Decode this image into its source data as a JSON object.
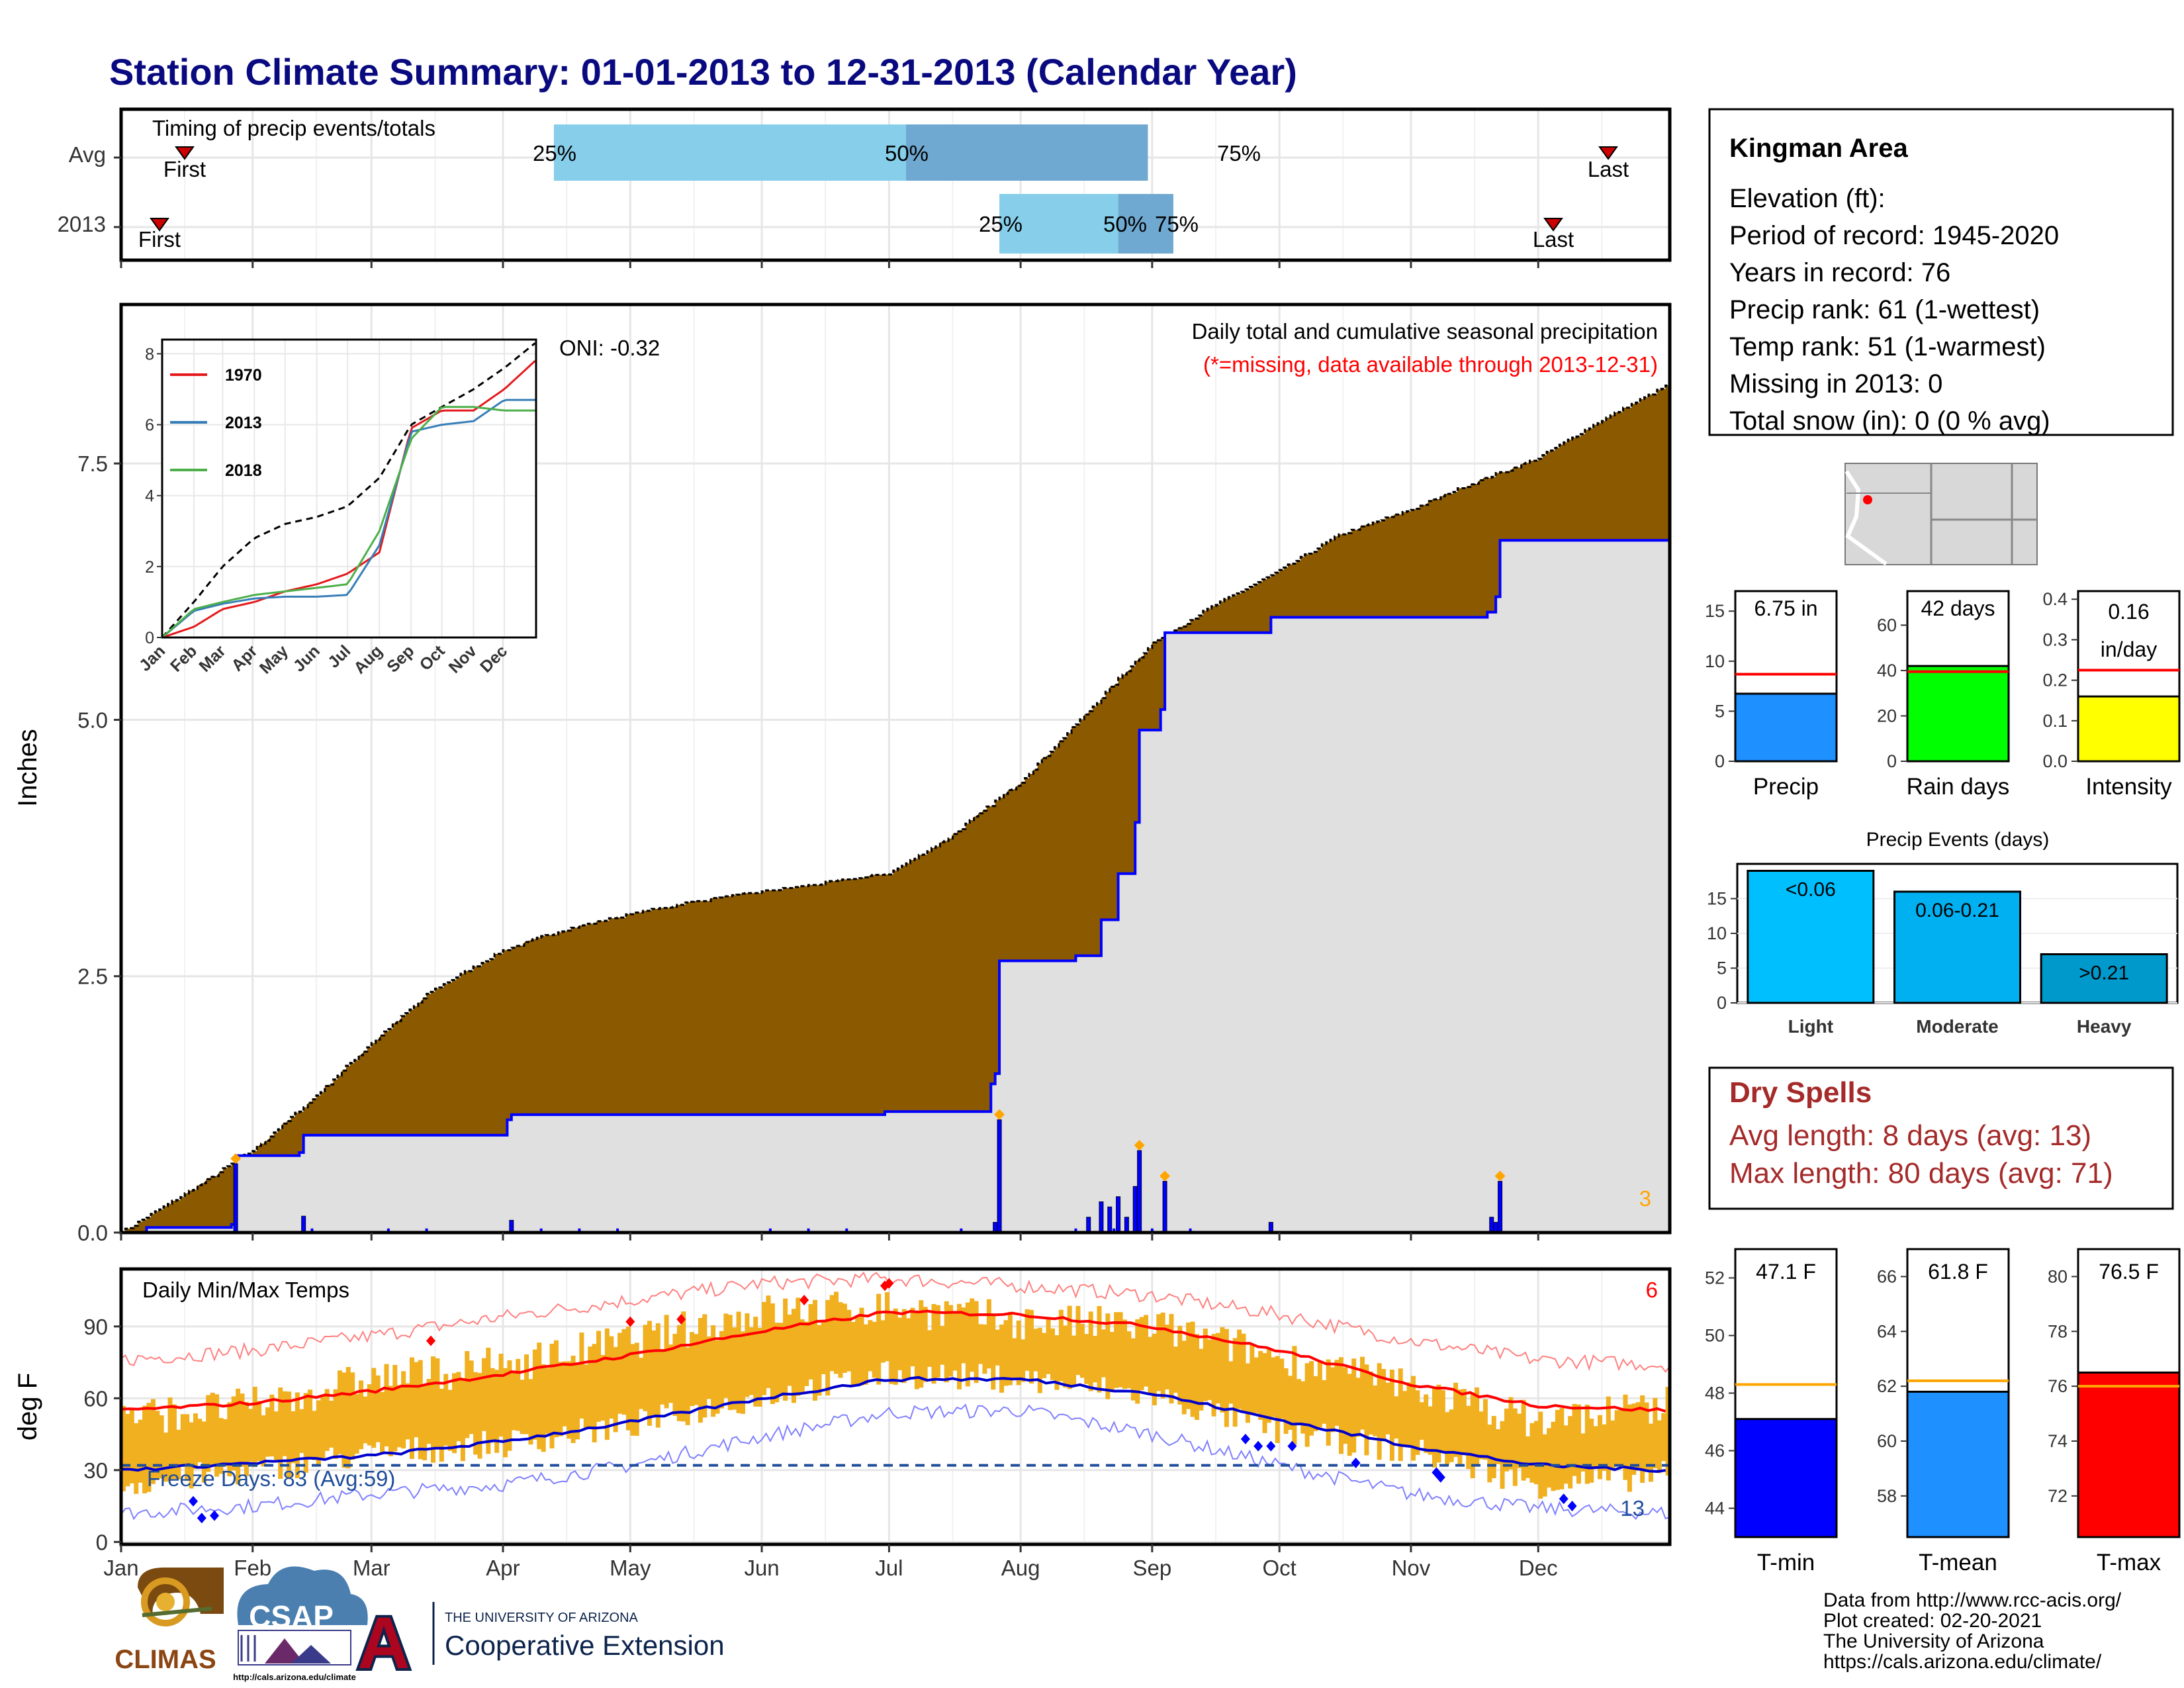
{
  "title": "Station Climate Summary: 01-01-2013 to 12-31-2013 (Calendar Year)",
  "timing": {
    "label": "Timing of precip events/totals",
    "rows": [
      {
        "name": "Avg",
        "first": "First",
        "last": "Last",
        "p25": "25%",
        "p50": "50%",
        "p75": "75%",
        "first_date": "2013-01-13",
        "p25_date": "2013-04-13",
        "p50_date": "2013-07-05",
        "p75_date": "2013-08-31",
        "last_date": "2013-12-22"
      },
      {
        "name": "2013",
        "first": "First",
        "last": "Last",
        "p25": "25%",
        "p50": "50%",
        "p75": "75%",
        "first_date": "2013-01-07",
        "p25_date": "2013-07-27",
        "p50_date": "2013-08-24",
        "p75_date": "2013-09-06",
        "last_date": "2013-12-03"
      }
    ]
  },
  "station": {
    "name": "Kingman Area",
    "lines": [
      "Elevation (ft):",
      "Period of record: 1945-2020",
      "Years in record: 76",
      "Precip rank: 61 (1-wettest)",
      "Temp rank: 51 (1-warmest)",
      "Missing in 2013: 0",
      "Total snow (in): 0 (0 % avg)"
    ]
  },
  "precip": {
    "ylabel": "Inches",
    "annot1": "Daily total and cumulative seasonal precipitation",
    "annot2": "(*=missing, data available through 2013-12-31)",
    "corner": "3",
    "oni": "ONI: -0.32",
    "colors": {
      "avg_fill": "#8b5a00",
      "obs_fill": "#e0e0e0",
      "obs_line": "#0000ff",
      "bars": "#0000ff",
      "extreme": "#ffa500"
    }
  },
  "inset": {
    "legend": [
      "1970",
      "2013",
      "2018"
    ],
    "colors": [
      "#e41a1c",
      "#377eb8",
      "#4daf4a"
    ]
  },
  "temps": {
    "ylabel": "deg F",
    "label": "Daily Min/Max Temps",
    "freeze": "Freeze Days: 83 (Avg:59)",
    "corner_hot": "6",
    "corner_cold": "13",
    "colors": {
      "range": "#f0b020",
      "tmax": "#ff0000",
      "tmin": "#0000cc",
      "freeze": "#1f4e9a"
    }
  },
  "summary_bars": [
    {
      "label": "Precip",
      "value_text": "6.75 in",
      "value": 6.75,
      "avg": 8.7,
      "ylim": [
        0,
        17
      ],
      "ticks": [
        0,
        5,
        10,
        15
      ],
      "color": "#1e90ff"
    },
    {
      "label": "Rain days",
      "value_text": "42 days",
      "value": 42,
      "avg": 39.5,
      "ylim": [
        0,
        75
      ],
      "ticks": [
        0,
        20,
        40,
        60
      ],
      "color": "#00ff00"
    },
    {
      "label": "Intensity",
      "value_text": "0.16",
      "value_text2": "in/day",
      "value": 0.16,
      "avg": 0.225,
      "ylim": [
        0,
        0.42
      ],
      "ticks": [
        "0.0",
        "0.1",
        "0.2",
        "0.3",
        "0.4"
      ],
      "color": "#ffff00"
    }
  ],
  "events": {
    "title": "Precip Events (days)",
    "categories": [
      "Light",
      "Moderate",
      "Heavy"
    ],
    "labels": [
      "<0.06",
      "0.06-0.21",
      ">0.21"
    ],
    "values": [
      19,
      16,
      7
    ],
    "ylim": [
      0,
      20
    ],
    "ticks": [
      0,
      5,
      10,
      15
    ],
    "colors": [
      "#00bfff",
      "#00b0f0",
      "#0099cc"
    ]
  },
  "dry": {
    "title": "Dry Spells",
    "line1": "Avg length: 8 days (avg: 13)",
    "line2": "Max length: 80 days (avg: 71)"
  },
  "temp_bars": [
    {
      "label": "T-min",
      "value_text": "47.1 F",
      "value": 47.1,
      "avg": 48.3,
      "ylim": [
        43,
        53
      ],
      "ticks": [
        44,
        46,
        48,
        50,
        52
      ],
      "color": "#0000ff"
    },
    {
      "label": "T-mean",
      "value_text": "61.8 F",
      "value": 61.8,
      "avg": 62.2,
      "ylim": [
        56.5,
        67
      ],
      "ticks": [
        58,
        60,
        62,
        64,
        66
      ],
      "color": "#1e90ff"
    },
    {
      "label": "T-max",
      "value_text": "76.5 F",
      "value": 76.5,
      "avg": 76.0,
      "ylim": [
        70.5,
        81
      ],
      "ticks": [
        72,
        74,
        76,
        78,
        80
      ],
      "color": "#ff0000"
    }
  ],
  "credits": {
    "lines": [
      "Data from http://www.rcc-acis.org/",
      "Plot created: 02-20-2021",
      "The University of Arizona",
      "https://cals.arizona.edu/climate/"
    ],
    "climas": "CLIMAS",
    "csap": "CSAP",
    "csap_url": "http://cals.arizona.edu/climate",
    "ua_top": "THE UNIVERSITY OF ARIZONA",
    "ua_bottom": "Cooperative Extension",
    "ua_letter": "A"
  },
  "chart_data": [
    {
      "type": "area",
      "title": "Daily total and cumulative seasonal precipitation",
      "ylabel": "Inches",
      "x_ticks": [
        "Jan",
        "Feb",
        "Mar",
        "Apr",
        "May",
        "Jun",
        "Jul",
        "Aug",
        "Sep",
        "Oct",
        "Nov",
        "Dec"
      ],
      "ylim": [
        0,
        9.05
      ],
      "y_ticks": [
        "0.0",
        "2.5",
        "5.0",
        "7.5"
      ],
      "series": [
        {
          "name": "avg cumulative",
          "x": [
            "2013-01-01",
            "2013-01-15",
            "2013-02-01",
            "2013-02-15",
            "2013-03-01",
            "2013-03-15",
            "2013-04-01",
            "2013-04-15",
            "2013-05-01",
            "2013-05-15",
            "2013-06-01",
            "2013-06-15",
            "2013-07-01",
            "2013-07-15",
            "2013-08-01",
            "2013-08-15",
            "2013-09-01",
            "2013-09-15",
            "2013-10-01",
            "2013-10-15",
            "2013-11-01",
            "2013-11-15",
            "2013-12-01",
            "2013-12-15",
            "2013-12-31"
          ],
          "values": [
            0.0,
            0.35,
            0.8,
            1.3,
            1.85,
            2.35,
            2.75,
            2.95,
            3.1,
            3.22,
            3.32,
            3.4,
            3.5,
            3.85,
            4.4,
            5.0,
            5.75,
            6.1,
            6.45,
            6.8,
            7.05,
            7.3,
            7.55,
            7.9,
            8.25
          ]
        },
        {
          "name": "2013 cumulative",
          "x": [
            "2013-01-01",
            "2013-01-07",
            "2013-01-27",
            "2013-01-28",
            "2013-02-12",
            "2013-02-13",
            "2013-04-02",
            "2013-04-03",
            "2013-06-30",
            "2013-07-25",
            "2013-07-26",
            "2013-07-27",
            "2013-08-14",
            "2013-08-20",
            "2013-08-24",
            "2013-08-28",
            "2013-08-29",
            "2013-09-03",
            "2013-09-04",
            "2013-09-28",
            "2013-09-29",
            "2013-11-19",
            "2013-11-21",
            "2013-11-22",
            "2013-12-31"
          ],
          "values": [
            0.0,
            0.05,
            0.08,
            0.75,
            0.78,
            0.95,
            1.1,
            1.15,
            1.18,
            1.45,
            1.55,
            2.65,
            2.7,
            3.05,
            3.5,
            4.0,
            4.9,
            5.1,
            5.85,
            5.85,
            6.0,
            6.05,
            6.2,
            6.75,
            6.75
          ]
        },
        {
          "name": "daily precip",
          "x": [
            "2013-01-28",
            "2013-02-13",
            "2013-04-03",
            "2013-07-26",
            "2013-07-27",
            "2013-08-17",
            "2013-08-20",
            "2013-08-22",
            "2013-08-24",
            "2013-08-26",
            "2013-08-28",
            "2013-08-29",
            "2013-09-04",
            "2013-09-29",
            "2013-11-20",
            "2013-11-21",
            "2013-11-22"
          ],
          "values": [
            0.67,
            0.16,
            0.12,
            0.1,
            1.1,
            0.15,
            0.3,
            0.25,
            0.35,
            0.15,
            0.45,
            0.8,
            0.5,
            0.1,
            0.15,
            0.1,
            0.5
          ]
        }
      ]
    },
    {
      "type": "line",
      "title": "",
      "x_ticks": [
        "Jan",
        "Feb",
        "Mar",
        "Apr",
        "May",
        "Jun",
        "Jul",
        "Aug",
        "Sep",
        "Oct",
        "Nov",
        "Dec"
      ],
      "ylim": [
        0,
        8.4
      ],
      "y_ticks": [
        "0",
        "2",
        "4",
        "6",
        "8"
      ],
      "series": [
        {
          "name": "avg",
          "x": [
            "2013-01-01",
            "2013-02-01",
            "2013-03-01",
            "2013-04-01",
            "2013-05-01",
            "2013-06-01",
            "2013-07-01",
            "2013-08-01",
            "2013-09-01",
            "2013-10-01",
            "2013-11-01",
            "2013-12-01",
            "2013-12-31"
          ],
          "values": [
            0,
            1.0,
            2.0,
            2.8,
            3.2,
            3.4,
            3.7,
            4.5,
            6.0,
            6.5,
            7.0,
            7.6,
            8.3
          ]
        },
        {
          "name": "1970",
          "x": [
            "2013-01-01",
            "2013-02-01",
            "2013-03-01",
            "2013-04-01",
            "2013-05-01",
            "2013-06-01",
            "2013-07-01",
            "2013-08-01",
            "2013-09-01",
            "2013-10-01",
            "2013-11-01",
            "2013-12-01",
            "2013-12-31"
          ],
          "values": [
            0,
            0.3,
            0.8,
            1.0,
            1.3,
            1.5,
            1.8,
            2.4,
            5.9,
            6.4,
            6.4,
            7.0,
            7.8
          ]
        },
        {
          "name": "2013",
          "x": [
            "2013-01-01",
            "2013-02-01",
            "2013-03-01",
            "2013-04-01",
            "2013-05-01",
            "2013-06-01",
            "2013-07-01",
            "2013-08-01",
            "2013-09-01",
            "2013-10-01",
            "2013-11-01",
            "2013-12-01",
            "2013-12-31"
          ],
          "values": [
            0,
            0.75,
            0.95,
            1.1,
            1.15,
            1.15,
            1.2,
            2.6,
            5.8,
            6.0,
            6.1,
            6.7,
            6.7
          ]
        },
        {
          "name": "2018",
          "x": [
            "2013-01-01",
            "2013-02-01",
            "2013-03-01",
            "2013-04-01",
            "2013-05-01",
            "2013-06-01",
            "2013-07-01",
            "2013-08-01",
            "2013-09-01",
            "2013-10-01",
            "2013-11-01",
            "2013-12-01",
            "2013-12-31"
          ],
          "values": [
            0,
            0.8,
            1.0,
            1.2,
            1.3,
            1.4,
            1.5,
            3.0,
            5.6,
            6.5,
            6.5,
            6.4,
            6.4
          ]
        }
      ]
    },
    {
      "type": "bar",
      "title": "Daily Min/Max Temps",
      "ylabel": "deg F",
      "x_ticks": [
        "Jan",
        "Feb",
        "Mar",
        "Apr",
        "May",
        "Jun",
        "Jul",
        "Aug",
        "Sep",
        "Oct",
        "Nov",
        "Dec"
      ],
      "ylim": [
        -1,
        114
      ],
      "y_ticks": [
        "0",
        "30",
        "60",
        "90"
      ],
      "freeze_line": 32,
      "series": [
        {
          "name": "avg tmax",
          "x": [
            "2013-01-01",
            "2013-02-01",
            "2013-03-01",
            "2013-04-01",
            "2013-05-01",
            "2013-06-01",
            "2013-07-01",
            "2013-08-01",
            "2013-09-01",
            "2013-10-01",
            "2013-11-01",
            "2013-12-01",
            "2013-12-31"
          ],
          "values": [
            55,
            58,
            63,
            70,
            78,
            88,
            96,
            95,
            90,
            80,
            66,
            57,
            55
          ]
        },
        {
          "name": "avg tmin",
          "x": [
            "2013-01-01",
            "2013-02-01",
            "2013-03-01",
            "2013-04-01",
            "2013-05-01",
            "2013-06-01",
            "2013-07-01",
            "2013-08-01",
            "2013-09-01",
            "2013-10-01",
            "2013-11-01",
            "2013-12-01",
            "2013-12-31"
          ],
          "values": [
            30,
            33,
            36,
            42,
            50,
            60,
            68,
            68,
            62,
            51,
            40,
            32,
            30
          ]
        },
        {
          "name": "record high",
          "x": [
            "2013-01-01",
            "2013-02-01",
            "2013-03-01",
            "2013-04-01",
            "2013-05-01",
            "2013-06-01",
            "2013-07-01",
            "2013-08-01",
            "2013-09-01",
            "2013-10-01",
            "2013-11-01",
            "2013-12-01",
            "2013-12-31"
          ],
          "values": [
            76,
            80,
            86,
            94,
            101,
            108,
            110,
            107,
            103,
            95,
            84,
            76,
            74
          ]
        },
        {
          "name": "record low",
          "x": [
            "2013-01-01",
            "2013-02-01",
            "2013-03-01",
            "2013-04-01",
            "2013-05-01",
            "2013-06-01",
            "2013-07-01",
            "2013-08-01",
            "2013-09-01",
            "2013-10-01",
            "2013-11-01",
            "2013-12-01",
            "2013-12-31"
          ],
          "values": [
            12,
            15,
            20,
            24,
            32,
            44,
            54,
            55,
            45,
            32,
            20,
            14,
            12
          ]
        },
        {
          "name": "2013 tmax",
          "x": [
            "2013-01-01",
            "2013-02-01",
            "2013-03-01",
            "2013-04-01",
            "2013-05-01",
            "2013-06-01",
            "2013-07-01",
            "2013-08-01",
            "2013-09-01",
            "2013-10-01",
            "2013-11-01",
            "2013-12-01",
            "2013-12-31"
          ],
          "values": [
            52,
            57,
            68,
            74,
            84,
            96,
            98,
            92,
            90,
            77,
            65,
            50,
            58
          ]
        },
        {
          "name": "2013 tmin",
          "x": [
            "2013-01-01",
            "2013-02-01",
            "2013-03-01",
            "2013-04-01",
            "2013-05-01",
            "2013-06-01",
            "2013-07-01",
            "2013-08-01",
            "2013-09-01",
            "2013-10-01",
            "2013-11-01",
            "2013-12-01",
            "2013-12-31"
          ],
          "values": [
            24,
            30,
            37,
            41,
            49,
            61,
            70,
            68,
            61,
            46,
            38,
            24,
            28
          ]
        }
      ]
    },
    {
      "type": "bar",
      "title": "",
      "categories": [
        "Precip",
        "Rain days",
        "Intensity"
      ],
      "values": [
        6.75,
        42,
        0.16
      ]
    },
    {
      "type": "bar",
      "title": "Precip Events (days)",
      "categories": [
        "Light",
        "Moderate",
        "Heavy"
      ],
      "values": [
        19,
        16,
        7
      ]
    },
    {
      "type": "bar",
      "title": "",
      "categories": [
        "T-min",
        "T-mean",
        "T-max"
      ],
      "values": [
        47.1,
        61.8,
        76.5
      ]
    }
  ]
}
